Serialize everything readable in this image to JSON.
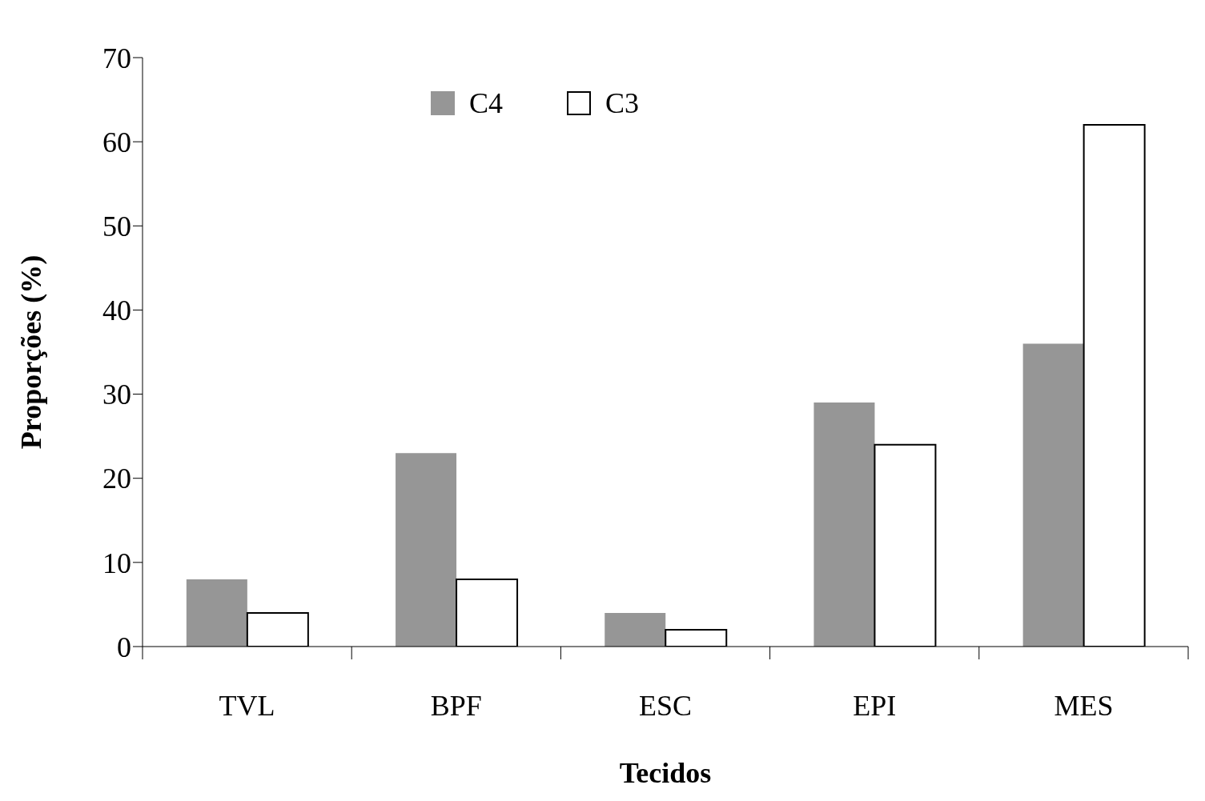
{
  "chart_data": {
    "type": "bar",
    "xlabel": "Tecidos",
    "ylabel": "Proporções (%)",
    "categories": [
      "TVL",
      "BPF",
      "ESC",
      "EPI",
      "MES"
    ],
    "series": [
      {
        "name": "C4",
        "color": "#969696",
        "values": [
          8,
          23,
          4,
          29,
          36
        ]
      },
      {
        "name": "C3",
        "color": "#ffffff",
        "values": [
          4,
          8,
          2,
          24,
          62
        ]
      }
    ],
    "ylim": [
      0,
      70
    ],
    "yticks": [
      0,
      10,
      20,
      30,
      40,
      50,
      60,
      70
    ],
    "grid": false,
    "legend": "top"
  }
}
